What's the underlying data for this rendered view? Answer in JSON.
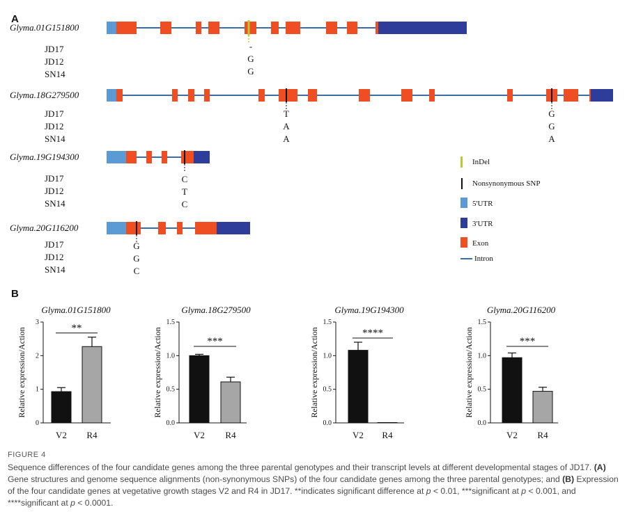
{
  "panel_a": {
    "label": "A",
    "genotypes": [
      "JD17",
      "JD12",
      "SN14"
    ],
    "genes": [
      {
        "name": "Glyma.01G151800",
        "alleles": [
          [
            "-",
            "G",
            "G"
          ]
        ]
      },
      {
        "name": "Glyma.18G279500",
        "alleles": [
          [
            "T",
            "A",
            "A"
          ],
          [
            "G",
            "G",
            "A"
          ]
        ]
      },
      {
        "name": "Glyma.19G194300",
        "alleles": [
          [
            "C",
            "T",
            "C"
          ]
        ]
      },
      {
        "name": "Glyma.20G116200",
        "alleles": [
          [
            "G",
            "G",
            "C"
          ]
        ]
      }
    ],
    "legend": [
      {
        "label": "InDel",
        "kind": "indel"
      },
      {
        "label": "Nonsynonymous SNP",
        "kind": "snp"
      },
      {
        "label": "5'UTR",
        "kind": "utr5"
      },
      {
        "label": "3'UTR",
        "kind": "utr3"
      },
      {
        "label": "Exon",
        "kind": "exon"
      },
      {
        "label": "Intron",
        "kind": "intron"
      }
    ],
    "colors": {
      "utr5": "#5b9bd5",
      "utr3": "#2e3d9a",
      "exon": "#ee4e22",
      "intron": "#3a6ca8",
      "indel": "#b5cc2e",
      "snp": "#111111"
    }
  },
  "panel_b": {
    "label": "B"
  },
  "chart_data": [
    {
      "type": "bar",
      "title": "Glyma.01G151800",
      "ylabel": "Relative expression/Action",
      "categories": [
        "V2",
        "R4"
      ],
      "values": [
        0.93,
        2.27
      ],
      "errors": [
        0.12,
        0.28
      ],
      "ylim": [
        0,
        3
      ],
      "yticks": [
        "0",
        "1",
        "2",
        "3"
      ],
      "significance": "**",
      "bar_colors": [
        "#111111",
        "#a6a6a6"
      ]
    },
    {
      "type": "bar",
      "title": "Glyma.18G279500",
      "ylabel": "Relative expression/Action",
      "categories": [
        "V2",
        "R4"
      ],
      "values": [
        1.0,
        0.61
      ],
      "errors": [
        0.02,
        0.07
      ],
      "ylim": [
        0,
        1.5
      ],
      "yticks": [
        "0.0",
        "0.5",
        "1.0",
        "1.5"
      ],
      "significance": "***",
      "bar_colors": [
        "#111111",
        "#a6a6a6"
      ]
    },
    {
      "type": "bar",
      "title": "Glyma.19G194300",
      "ylabel": "Relative expression/Action",
      "categories": [
        "V2",
        "R4"
      ],
      "values": [
        1.08,
        0.005
      ],
      "errors": [
        0.12,
        0.005
      ],
      "ylim": [
        0,
        1.5
      ],
      "yticks": [
        "0.0",
        "0.5",
        "1.0",
        "1.5"
      ],
      "significance": "****",
      "bar_colors": [
        "#111111",
        "#a6a6a6"
      ]
    },
    {
      "type": "bar",
      "title": "Glyma.20G116200",
      "ylabel": "Relative expression/Action",
      "categories": [
        "V2",
        "R4"
      ],
      "values": [
        0.97,
        0.47
      ],
      "errors": [
        0.07,
        0.06
      ],
      "ylim": [
        0,
        1.5
      ],
      "yticks": [
        "0.0",
        "0.5",
        "1.0",
        "1.5"
      ],
      "significance": "***",
      "bar_colors": [
        "#111111",
        "#a6a6a6"
      ]
    }
  ],
  "caption": {
    "label": "FIGURE 4",
    "s1": "Sequence differences of the four candidate genes among the three parental genotypes and their transcript levels at different developmental stages of JD17.",
    "a_tag": "(A)",
    "s2": "Gene structures and genome sequence alignments (non-synonymous SNPs) of the four candidate genes among the three parental genotypes; and",
    "b_tag": "(B)",
    "s3": "Expression of the four candidate genes at vegetative growth stages V2 and R4 in JD17. **indicates significant difference at",
    "p": "p",
    "s4": "< 0.01, ***significant at",
    "s5": "< 0.001, and ****significant at",
    "s6": "< 0.0001."
  }
}
